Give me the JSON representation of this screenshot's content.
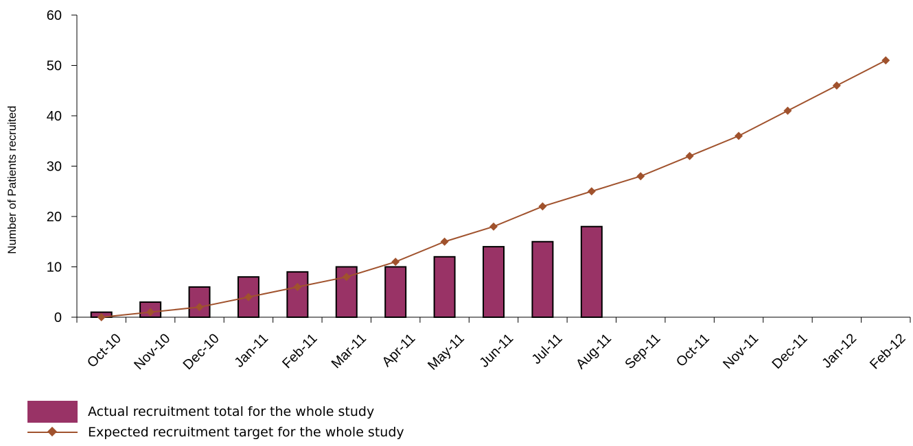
{
  "chart_data": {
    "type": "bar",
    "title": "",
    "xlabel": "",
    "ylabel": "Number of Patients recruited",
    "ylim": [
      0,
      60
    ],
    "yticks": [
      "0",
      "10",
      "20",
      "30",
      "40",
      "50",
      "60"
    ],
    "grid": false,
    "legend_placement": "bottom-left",
    "categories": [
      "Oct-10",
      "Nov-10",
      "Dec-10",
      "Jan-11",
      "Feb-11",
      "Mar-11",
      "Apr-11",
      "May-11",
      "Jun-11",
      "Jul-11",
      "Aug-11",
      "Sep-11",
      "Oct-11",
      "Nov-11",
      "Dec-11",
      "Jan-12",
      "Feb-12"
    ],
    "series": [
      {
        "name": "Actual recruitment total for the whole study",
        "type": "bar",
        "color": "#993366",
        "values": [
          1,
          3,
          6,
          8,
          9,
          10,
          10,
          12,
          14,
          15,
          18,
          null,
          null,
          null,
          null,
          null,
          null
        ]
      },
      {
        "name": "Expected recruitment target for the whole study",
        "type": "line",
        "color": "#a0522d",
        "marker": "diamond",
        "values": [
          0,
          1,
          2,
          4,
          6,
          8,
          11,
          15,
          18,
          22,
          25,
          28,
          32,
          36,
          41,
          46,
          51
        ]
      }
    ]
  }
}
